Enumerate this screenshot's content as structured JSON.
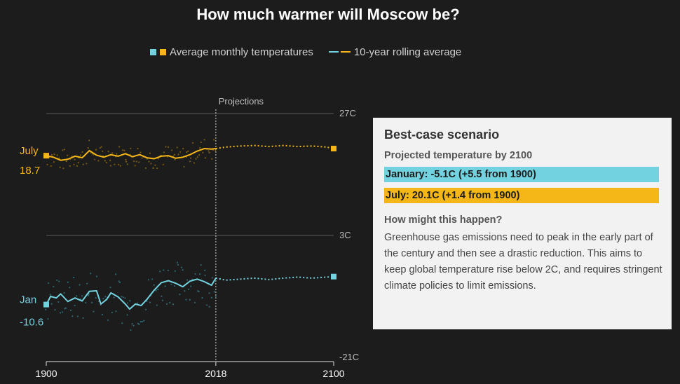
{
  "title": "How much warmer will Moscow be?",
  "legend": {
    "monthly_label": "Average monthly temperatures",
    "rolling_label": "10-year rolling average"
  },
  "colors": {
    "july": "#f5b618",
    "jan": "#72d2e0",
    "grid": "#5a5a5a",
    "axis_text": "#bdbdbd"
  },
  "panel": {
    "heading": "Best-case scenario",
    "subheading": "Projected temperature by 2100",
    "jan_bar": "January: -5.1C (+5.5 from 1900)",
    "july_bar": "July: 20.1C (+1.4 from 1900)",
    "question": "How might this happen?",
    "body": "Greenhouse gas emissions need to peak in the early part of the century and then see a drastic reduction. This aims to keep global temperature rise below 2C, and requires stringent climate policies to limit emissions."
  },
  "chart_data": {
    "type": "line",
    "xlim": [
      1900,
      2100
    ],
    "ylim": [
      -21,
      27
    ],
    "x_ticks": [
      "1900",
      "2018",
      "2100"
    ],
    "y_ticks": [
      "27C",
      "3C",
      "-21C"
    ],
    "y_tick_values": [
      27,
      3,
      -21
    ],
    "projection_start": 2018,
    "projection_label": "Projections",
    "start_labels": {
      "july_name": "July",
      "july_value": "18.7",
      "jan_name": "Jan",
      "jan_value": "-10.6"
    },
    "series": [
      {
        "name": "July",
        "color": "#f5b618",
        "observed": [
          [
            1900,
            18.7
          ],
          [
            1905,
            18.4
          ],
          [
            1910,
            17.8
          ],
          [
            1915,
            18.0
          ],
          [
            1920,
            18.6
          ],
          [
            1925,
            18.3
          ],
          [
            1930,
            19.7
          ],
          [
            1935,
            18.8
          ],
          [
            1940,
            18.4
          ],
          [
            1945,
            18.9
          ],
          [
            1950,
            18.6
          ],
          [
            1955,
            19.1
          ],
          [
            1960,
            18.5
          ],
          [
            1965,
            18.9
          ],
          [
            1970,
            18.3
          ],
          [
            1975,
            18.1
          ],
          [
            1980,
            18.6
          ],
          [
            1985,
            18.7
          ],
          [
            1990,
            18.2
          ],
          [
            1995,
            18.4
          ],
          [
            2000,
            18.9
          ],
          [
            2005,
            19.6
          ],
          [
            2010,
            20.1
          ],
          [
            2015,
            20.0
          ],
          [
            2018,
            20.1
          ]
        ],
        "projected": [
          [
            2018,
            20.1
          ],
          [
            2025,
            20.4
          ],
          [
            2035,
            20.6
          ],
          [
            2045,
            20.7
          ],
          [
            2055,
            20.5
          ],
          [
            2065,
            20.7
          ],
          [
            2075,
            20.5
          ],
          [
            2085,
            20.6
          ],
          [
            2095,
            20.4
          ],
          [
            2100,
            20.1
          ]
        ]
      },
      {
        "name": "Jan",
        "color": "#72d2e0",
        "observed": [
          [
            1900,
            -10.6
          ],
          [
            1903,
            -9.0
          ],
          [
            1907,
            -9.3
          ],
          [
            1910,
            -8.5
          ],
          [
            1915,
            -10.0
          ],
          [
            1920,
            -9.3
          ],
          [
            1925,
            -9.9
          ],
          [
            1930,
            -8.0
          ],
          [
            1935,
            -7.9
          ],
          [
            1938,
            -10.5
          ],
          [
            1942,
            -9.6
          ],
          [
            1945,
            -8.3
          ],
          [
            1950,
            -9.1
          ],
          [
            1955,
            -10.5
          ],
          [
            1958,
            -11.5
          ],
          [
            1962,
            -10.5
          ],
          [
            1966,
            -10.8
          ],
          [
            1970,
            -9.6
          ],
          [
            1975,
            -7.8
          ],
          [
            1980,
            -6.3
          ],
          [
            1985,
            -5.9
          ],
          [
            1990,
            -6.4
          ],
          [
            1995,
            -7.1
          ],
          [
            2000,
            -6.0
          ],
          [
            2005,
            -5.6
          ],
          [
            2010,
            -6.1
          ],
          [
            2015,
            -6.8
          ],
          [
            2018,
            -5.4
          ]
        ],
        "projected": [
          [
            2018,
            -5.4
          ],
          [
            2025,
            -5.8
          ],
          [
            2035,
            -5.6
          ],
          [
            2045,
            -5.4
          ],
          [
            2055,
            -5.7
          ],
          [
            2065,
            -5.4
          ],
          [
            2075,
            -5.2
          ],
          [
            2085,
            -5.4
          ],
          [
            2095,
            -5.2
          ],
          [
            2100,
            -5.1
          ]
        ]
      }
    ],
    "end_markers": {
      "july": 20.1,
      "jan": -5.1
    }
  }
}
